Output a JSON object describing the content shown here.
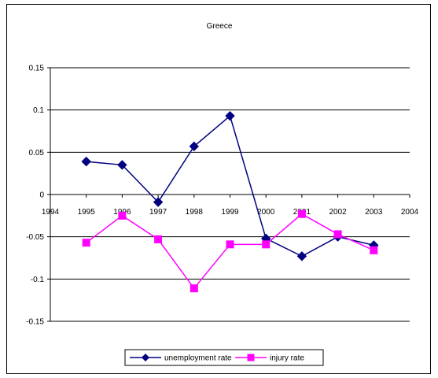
{
  "chart_data": {
    "type": "line",
    "title": "Greece",
    "xlabel": "",
    "ylabel": "",
    "x": [
      1995,
      1996,
      1997,
      1998,
      1999,
      2000,
      2001,
      2002,
      2003
    ],
    "x_ticks": [
      "1994",
      "1995",
      "1996",
      "1997",
      "1998",
      "1999",
      "2000",
      "2001",
      "2002",
      "2003",
      "2004"
    ],
    "xlim": [
      1994,
      2004
    ],
    "ylim": [
      -0.15,
      0.15
    ],
    "y_ticks": [
      "0.15",
      "0.1",
      "0.05",
      "0",
      "-0.05",
      "-0.1",
      "-0.15"
    ],
    "y_tick_values": [
      0.15,
      0.1,
      0.05,
      0,
      -0.05,
      -0.1,
      -0.15
    ],
    "grid": true,
    "legend_position": "bottom",
    "series": [
      {
        "name": "unemployment rate",
        "color": "#000080",
        "marker": "diamond",
        "values": [
          0.039,
          0.035,
          -0.009,
          0.057,
          0.093,
          -0.052,
          -0.073,
          -0.05,
          -0.06
        ]
      },
      {
        "name": "injury rate",
        "color": "#ff00ff",
        "marker": "square",
        "values": [
          -0.057,
          -0.025,
          -0.053,
          -0.111,
          -0.059,
          -0.059,
          -0.023,
          -0.047,
          -0.066
        ]
      }
    ]
  }
}
